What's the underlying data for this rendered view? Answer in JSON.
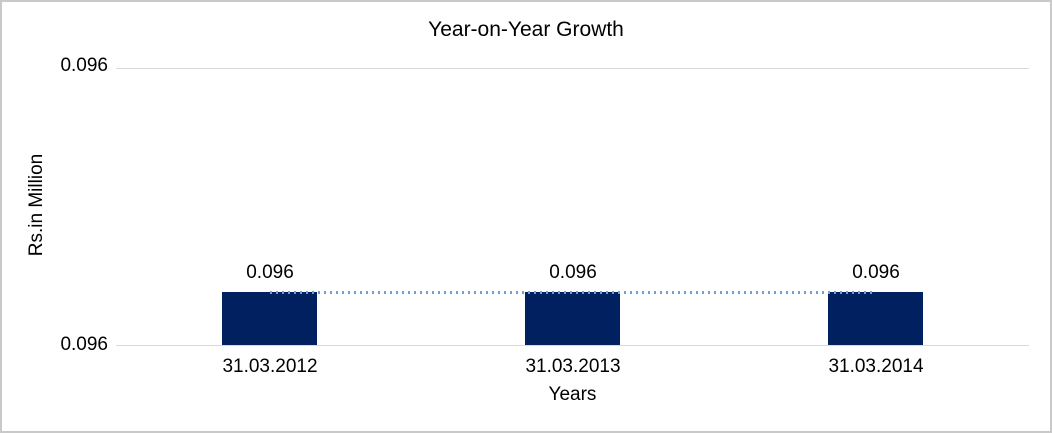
{
  "chart_data": {
    "type": "bar",
    "title": "Year-on-Year Growth",
    "xlabel": "Years",
    "ylabel": "Rs.in Million",
    "categories": [
      "31.03.2012",
      "31.03.2013",
      "31.03.2014"
    ],
    "values": [
      0.096,
      0.096,
      0.096
    ],
    "data_labels": [
      "0.096",
      "0.096",
      "0.096"
    ],
    "y_axis_tick_labels": [
      "0.096",
      "0.096"
    ],
    "trendline": {
      "style": "dotted",
      "color": "#6fa0db",
      "points": [
        0.096,
        0.096,
        0.096
      ],
      "note": "flat dotted connector spanning bar tops from first to last category"
    },
    "legend": "none",
    "grid": "single light-gray gridline at top tick and baseline axis only",
    "colors": {
      "bar_fill": "#002060",
      "trendline": "#6fa0db",
      "gridline": "#d9d9d9",
      "frame_border": "#c9c9c9",
      "text": "#000000",
      "background": "#ffffff"
    }
  }
}
